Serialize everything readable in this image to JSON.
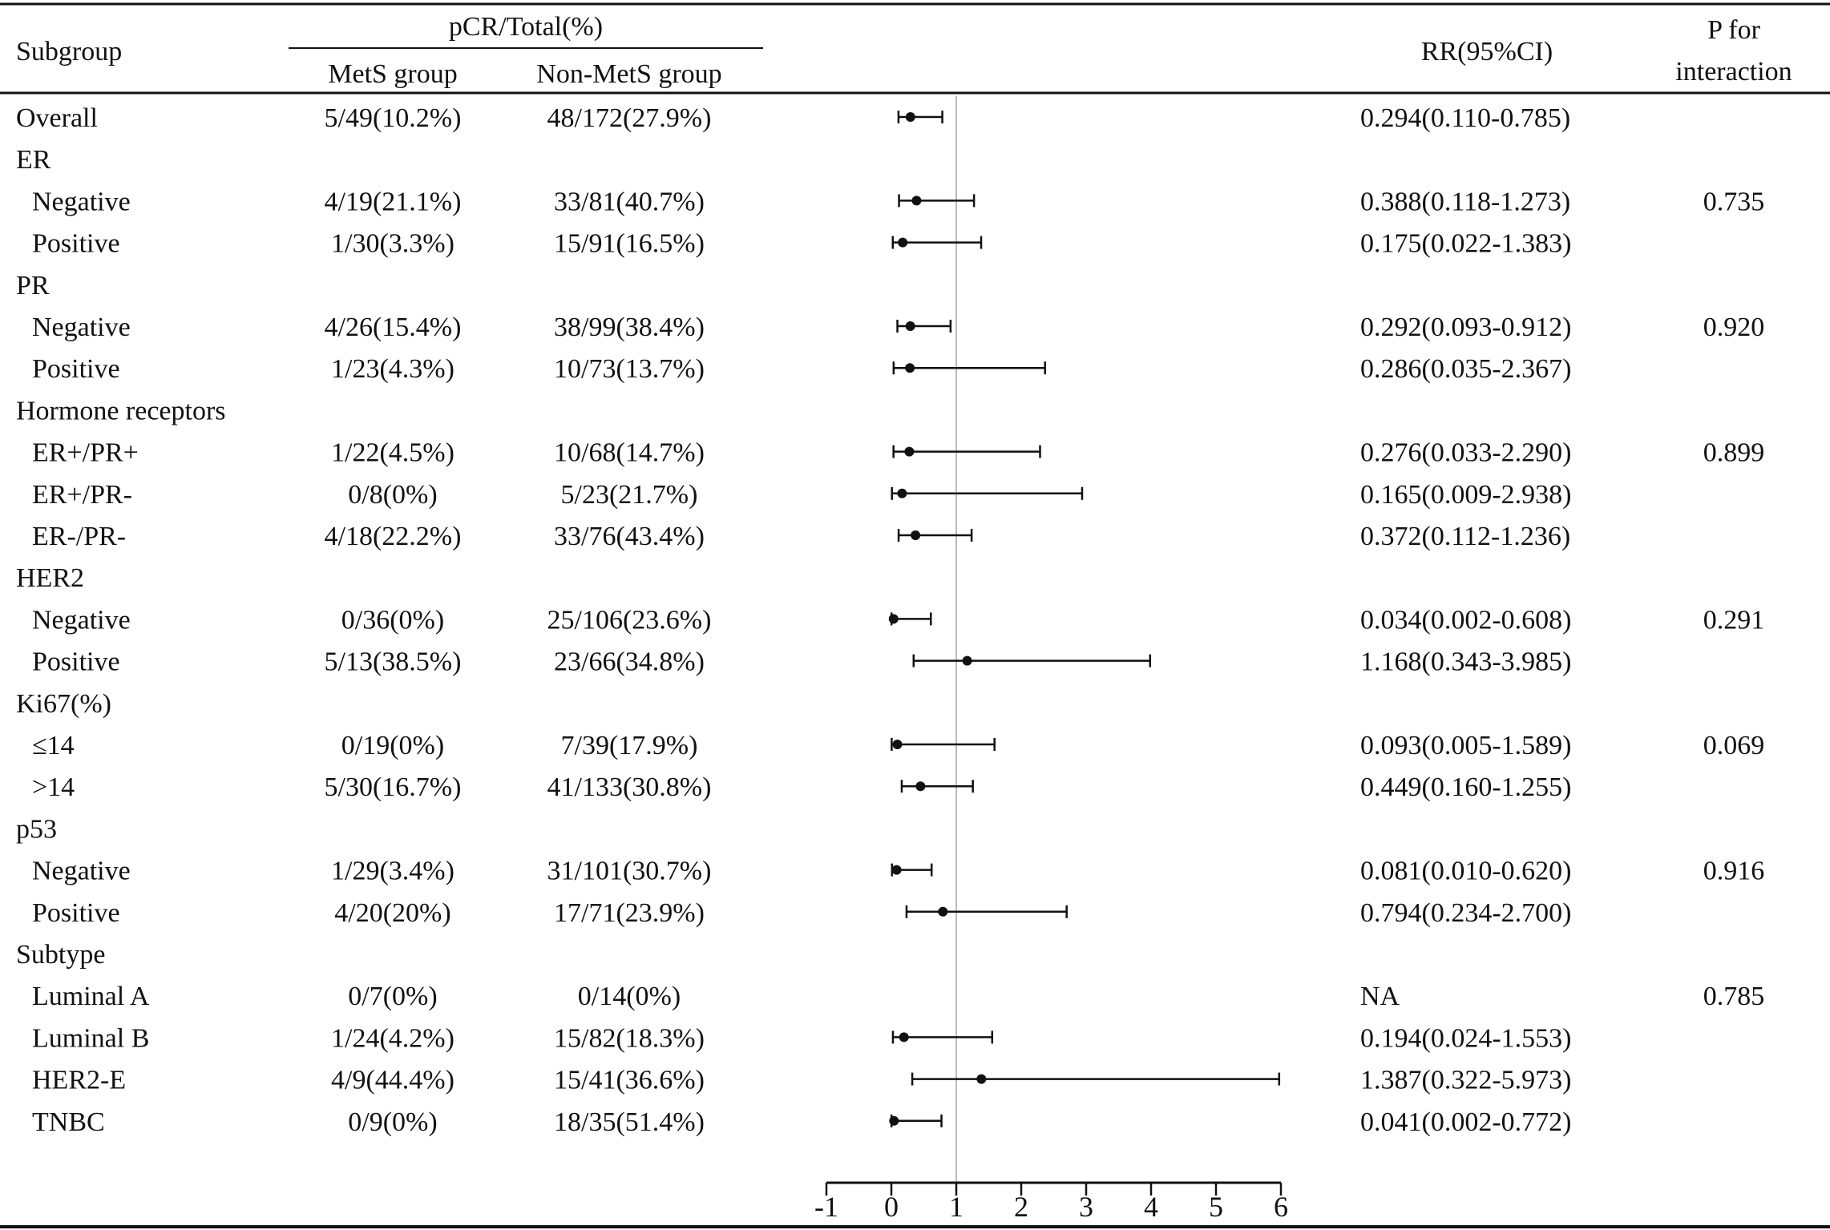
{
  "header": {
    "subgroup": "Subgroup",
    "pcr_total": "pCR/Total(%)",
    "mets": "MetS group",
    "nonmets": "Non-MetS group",
    "rr": "RR(95%CI)",
    "p_line1": "P for",
    "p_line2": "interaction"
  },
  "rows": [
    {
      "label": "Overall",
      "indent": false,
      "mets": "5/49(10.2%)",
      "nonmets": "48/172(27.9%)",
      "rr": 0.294,
      "lo": 0.11,
      "hi": 0.785,
      "rr_text": "0.294(0.110-0.785)",
      "p": ""
    },
    {
      "label": "ER",
      "indent": false,
      "header": true
    },
    {
      "label": "Negative",
      "indent": true,
      "mets": "4/19(21.1%)",
      "nonmets": "33/81(40.7%)",
      "rr": 0.388,
      "lo": 0.118,
      "hi": 1.273,
      "rr_text": "0.388(0.118-1.273)",
      "p": "0.735"
    },
    {
      "label": "Positive",
      "indent": true,
      "mets": "1/30(3.3%)",
      "nonmets": "15/91(16.5%)",
      "rr": 0.175,
      "lo": 0.022,
      "hi": 1.383,
      "rr_text": "0.175(0.022-1.383)",
      "p": ""
    },
    {
      "label": "PR",
      "indent": false,
      "header": true
    },
    {
      "label": "Negative",
      "indent": true,
      "mets": "4/26(15.4%)",
      "nonmets": "38/99(38.4%)",
      "rr": 0.292,
      "lo": 0.093,
      "hi": 0.912,
      "rr_text": "0.292(0.093-0.912)",
      "p": "0.920"
    },
    {
      "label": "Positive",
      "indent": true,
      "mets": "1/23(4.3%)",
      "nonmets": "10/73(13.7%)",
      "rr": 0.286,
      "lo": 0.035,
      "hi": 2.367,
      "rr_text": "0.286(0.035-2.367)",
      "p": ""
    },
    {
      "label": "Hormone receptors",
      "indent": false,
      "header": true
    },
    {
      "label": "ER+/PR+",
      "indent": true,
      "mets": "1/22(4.5%)",
      "nonmets": "10/68(14.7%)",
      "rr": 0.276,
      "lo": 0.033,
      "hi": 2.29,
      "rr_text": "0.276(0.033-2.290)",
      "p": "0.899"
    },
    {
      "label": "ER+/PR-",
      "indent": true,
      "mets": "0/8(0%)",
      "nonmets": "5/23(21.7%)",
      "rr": 0.165,
      "lo": 0.009,
      "hi": 2.938,
      "rr_text": "0.165(0.009-2.938)",
      "p": ""
    },
    {
      "label": "ER-/PR-",
      "indent": true,
      "mets": "4/18(22.2%)",
      "nonmets": "33/76(43.4%)",
      "rr": 0.372,
      "lo": 0.112,
      "hi": 1.236,
      "rr_text": "0.372(0.112-1.236)",
      "p": ""
    },
    {
      "label": "HER2",
      "indent": false,
      "header": true
    },
    {
      "label": "Negative",
      "indent": true,
      "mets": "0/36(0%)",
      "nonmets": "25/106(23.6%)",
      "rr": 0.034,
      "lo": 0.002,
      "hi": 0.608,
      "rr_text": "0.034(0.002-0.608)",
      "p": "0.291"
    },
    {
      "label": "Positive",
      "indent": true,
      "mets": "5/13(38.5%)",
      "nonmets": "23/66(34.8%)",
      "rr": 1.168,
      "lo": 0.343,
      "hi": 3.985,
      "rr_text": "1.168(0.343-3.985)",
      "p": ""
    },
    {
      "label": "Ki67(%)",
      "indent": false,
      "header": true
    },
    {
      "label": "≤14",
      "indent": true,
      "mets": "0/19(0%)",
      "nonmets": "7/39(17.9%)",
      "rr": 0.093,
      "lo": 0.005,
      "hi": 1.589,
      "rr_text": "0.093(0.005-1.589)",
      "p": "0.069"
    },
    {
      "label": ">14",
      "indent": true,
      "mets": "5/30(16.7%)",
      "nonmets": "41/133(30.8%)",
      "rr": 0.449,
      "lo": 0.16,
      "hi": 1.255,
      "rr_text": "0.449(0.160-1.255)",
      "p": ""
    },
    {
      "label": "p53",
      "indent": false,
      "header": true
    },
    {
      "label": "Negative",
      "indent": true,
      "mets": "1/29(3.4%)",
      "nonmets": "31/101(30.7%)",
      "rr": 0.081,
      "lo": 0.01,
      "hi": 0.62,
      "rr_text": "0.081(0.010-0.620)",
      "p": "0.916"
    },
    {
      "label": "Positive",
      "indent": true,
      "mets": "4/20(20%)",
      "nonmets": "17/71(23.9%)",
      "rr": 0.794,
      "lo": 0.234,
      "hi": 2.7,
      "rr_text": "0.794(0.234-2.700)",
      "p": ""
    },
    {
      "label": "Subtype",
      "indent": false,
      "header": true
    },
    {
      "label": "Luminal A",
      "indent": true,
      "mets": "0/7(0%)",
      "nonmets": "0/14(0%)",
      "rr": null,
      "lo": null,
      "hi": null,
      "rr_text": "NA",
      "p": "0.785"
    },
    {
      "label": "Luminal B",
      "indent": true,
      "mets": "1/24(4.2%)",
      "nonmets": "15/82(18.3%)",
      "rr": 0.194,
      "lo": 0.024,
      "hi": 1.553,
      "rr_text": "0.194(0.024-1.553)",
      "p": ""
    },
    {
      "label": "HER2-E",
      "indent": true,
      "mets": "4/9(44.4%)",
      "nonmets": "15/41(36.6%)",
      "rr": 1.387,
      "lo": 0.322,
      "hi": 5.973,
      "rr_text": "1.387(0.322-5.973)",
      "p": ""
    },
    {
      "label": "TNBC",
      "indent": true,
      "mets": "0/9(0%)",
      "nonmets": "18/35(51.4%)",
      "rr": 0.041,
      "lo": 0.002,
      "hi": 0.772,
      "rr_text": "0.041(0.002-0.772)",
      "p": ""
    }
  ],
  "chart_data": {
    "type": "forest",
    "xlim": [
      -1,
      6
    ],
    "xticks": [
      -1,
      0,
      1,
      2,
      3,
      4,
      5,
      6
    ],
    "reference_line": 1,
    "grid": false
  }
}
